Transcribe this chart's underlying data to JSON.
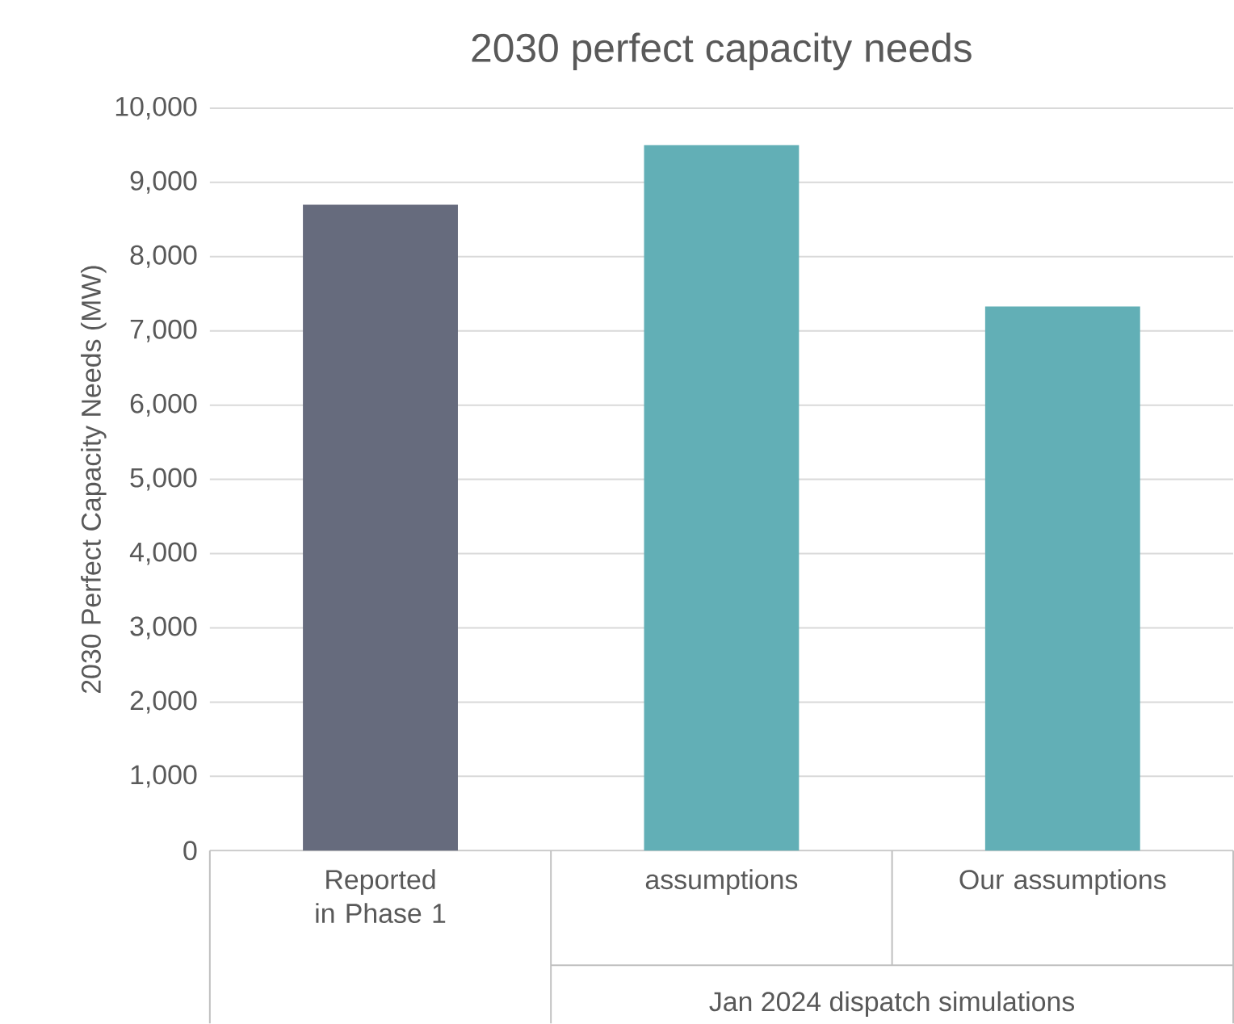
{
  "chart_data": {
    "type": "bar",
    "title": "2030 perfect capacity needs",
    "ylabel": "2030 Perfect Capacity Needs (MW)",
    "categories": [
      "Reported in Phase 1",
      "assumptions",
      "Our assumptions"
    ],
    "values": [
      8700,
      9500,
      7330
    ],
    "colors": [
      "#666b7d",
      "#62afb6",
      "#62afb6"
    ],
    "ylim": [
      0,
      10000
    ],
    "yticks": [
      {
        "value": 0,
        "label": "0"
      },
      {
        "value": 1000,
        "label": "1,000"
      },
      {
        "value": 2000,
        "label": "2,000"
      },
      {
        "value": 3000,
        "label": "3,000"
      },
      {
        "value": 4000,
        "label": "4,000"
      },
      {
        "value": 5000,
        "label": "5,000"
      },
      {
        "value": 6000,
        "label": "6,000"
      },
      {
        "value": 7000,
        "label": "7,000"
      },
      {
        "value": 8000,
        "label": "8,000"
      },
      {
        "value": 9000,
        "label": "9,000"
      },
      {
        "value": 10000,
        "label": "10,000"
      }
    ],
    "grid": "y",
    "annotations": [
      "Jan 2024 dispatch simulations"
    ]
  }
}
